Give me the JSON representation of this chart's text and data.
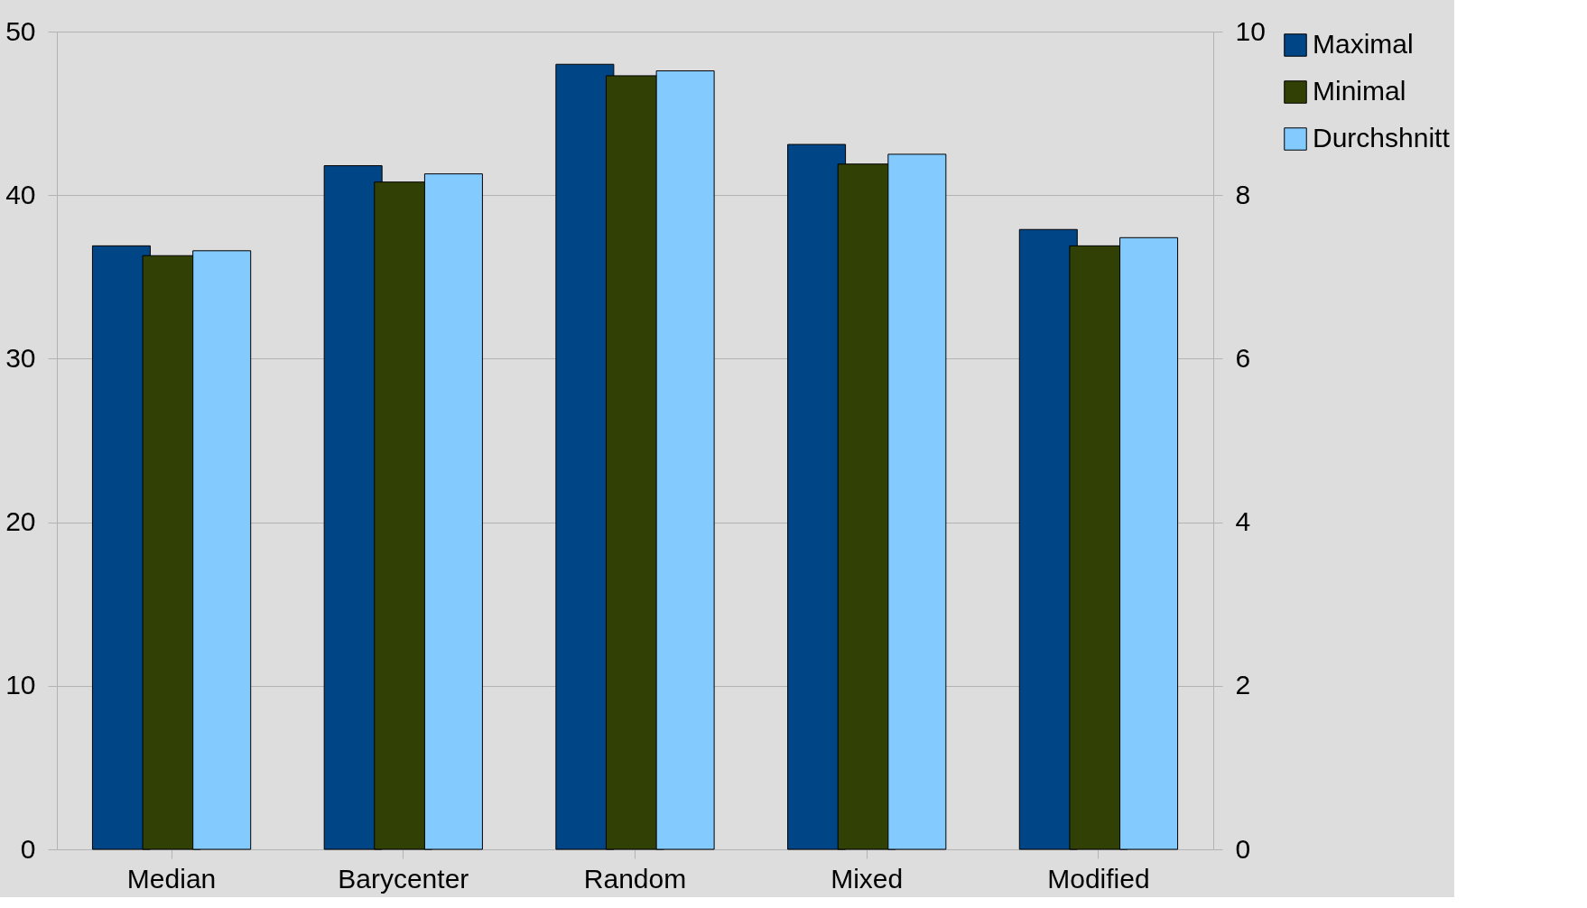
{
  "chart_data": {
    "type": "bar",
    "categories": [
      "Median",
      "Barycenter",
      "Random",
      "Mixed",
      "Modified"
    ],
    "series": [
      {
        "name": "Maximal",
        "color": "#004586",
        "values": [
          36.9,
          41.8,
          48.0,
          43.1,
          37.9
        ]
      },
      {
        "name": "Minimal",
        "color": "#314004",
        "values": [
          36.3,
          40.8,
          47.3,
          41.9,
          36.9
        ]
      },
      {
        "name": "Durchshnitt",
        "color": "#83caff",
        "values": [
          36.6,
          41.3,
          47.6,
          42.5,
          37.4
        ]
      }
    ],
    "ylim": [
      0,
      50
    ],
    "yticks": [
      0,
      10,
      20,
      30,
      40,
      50
    ],
    "y2lim": [
      0,
      10
    ],
    "y2ticks": [
      0,
      2,
      4,
      6,
      8,
      10
    ],
    "grid": "y",
    "legend": "right"
  }
}
